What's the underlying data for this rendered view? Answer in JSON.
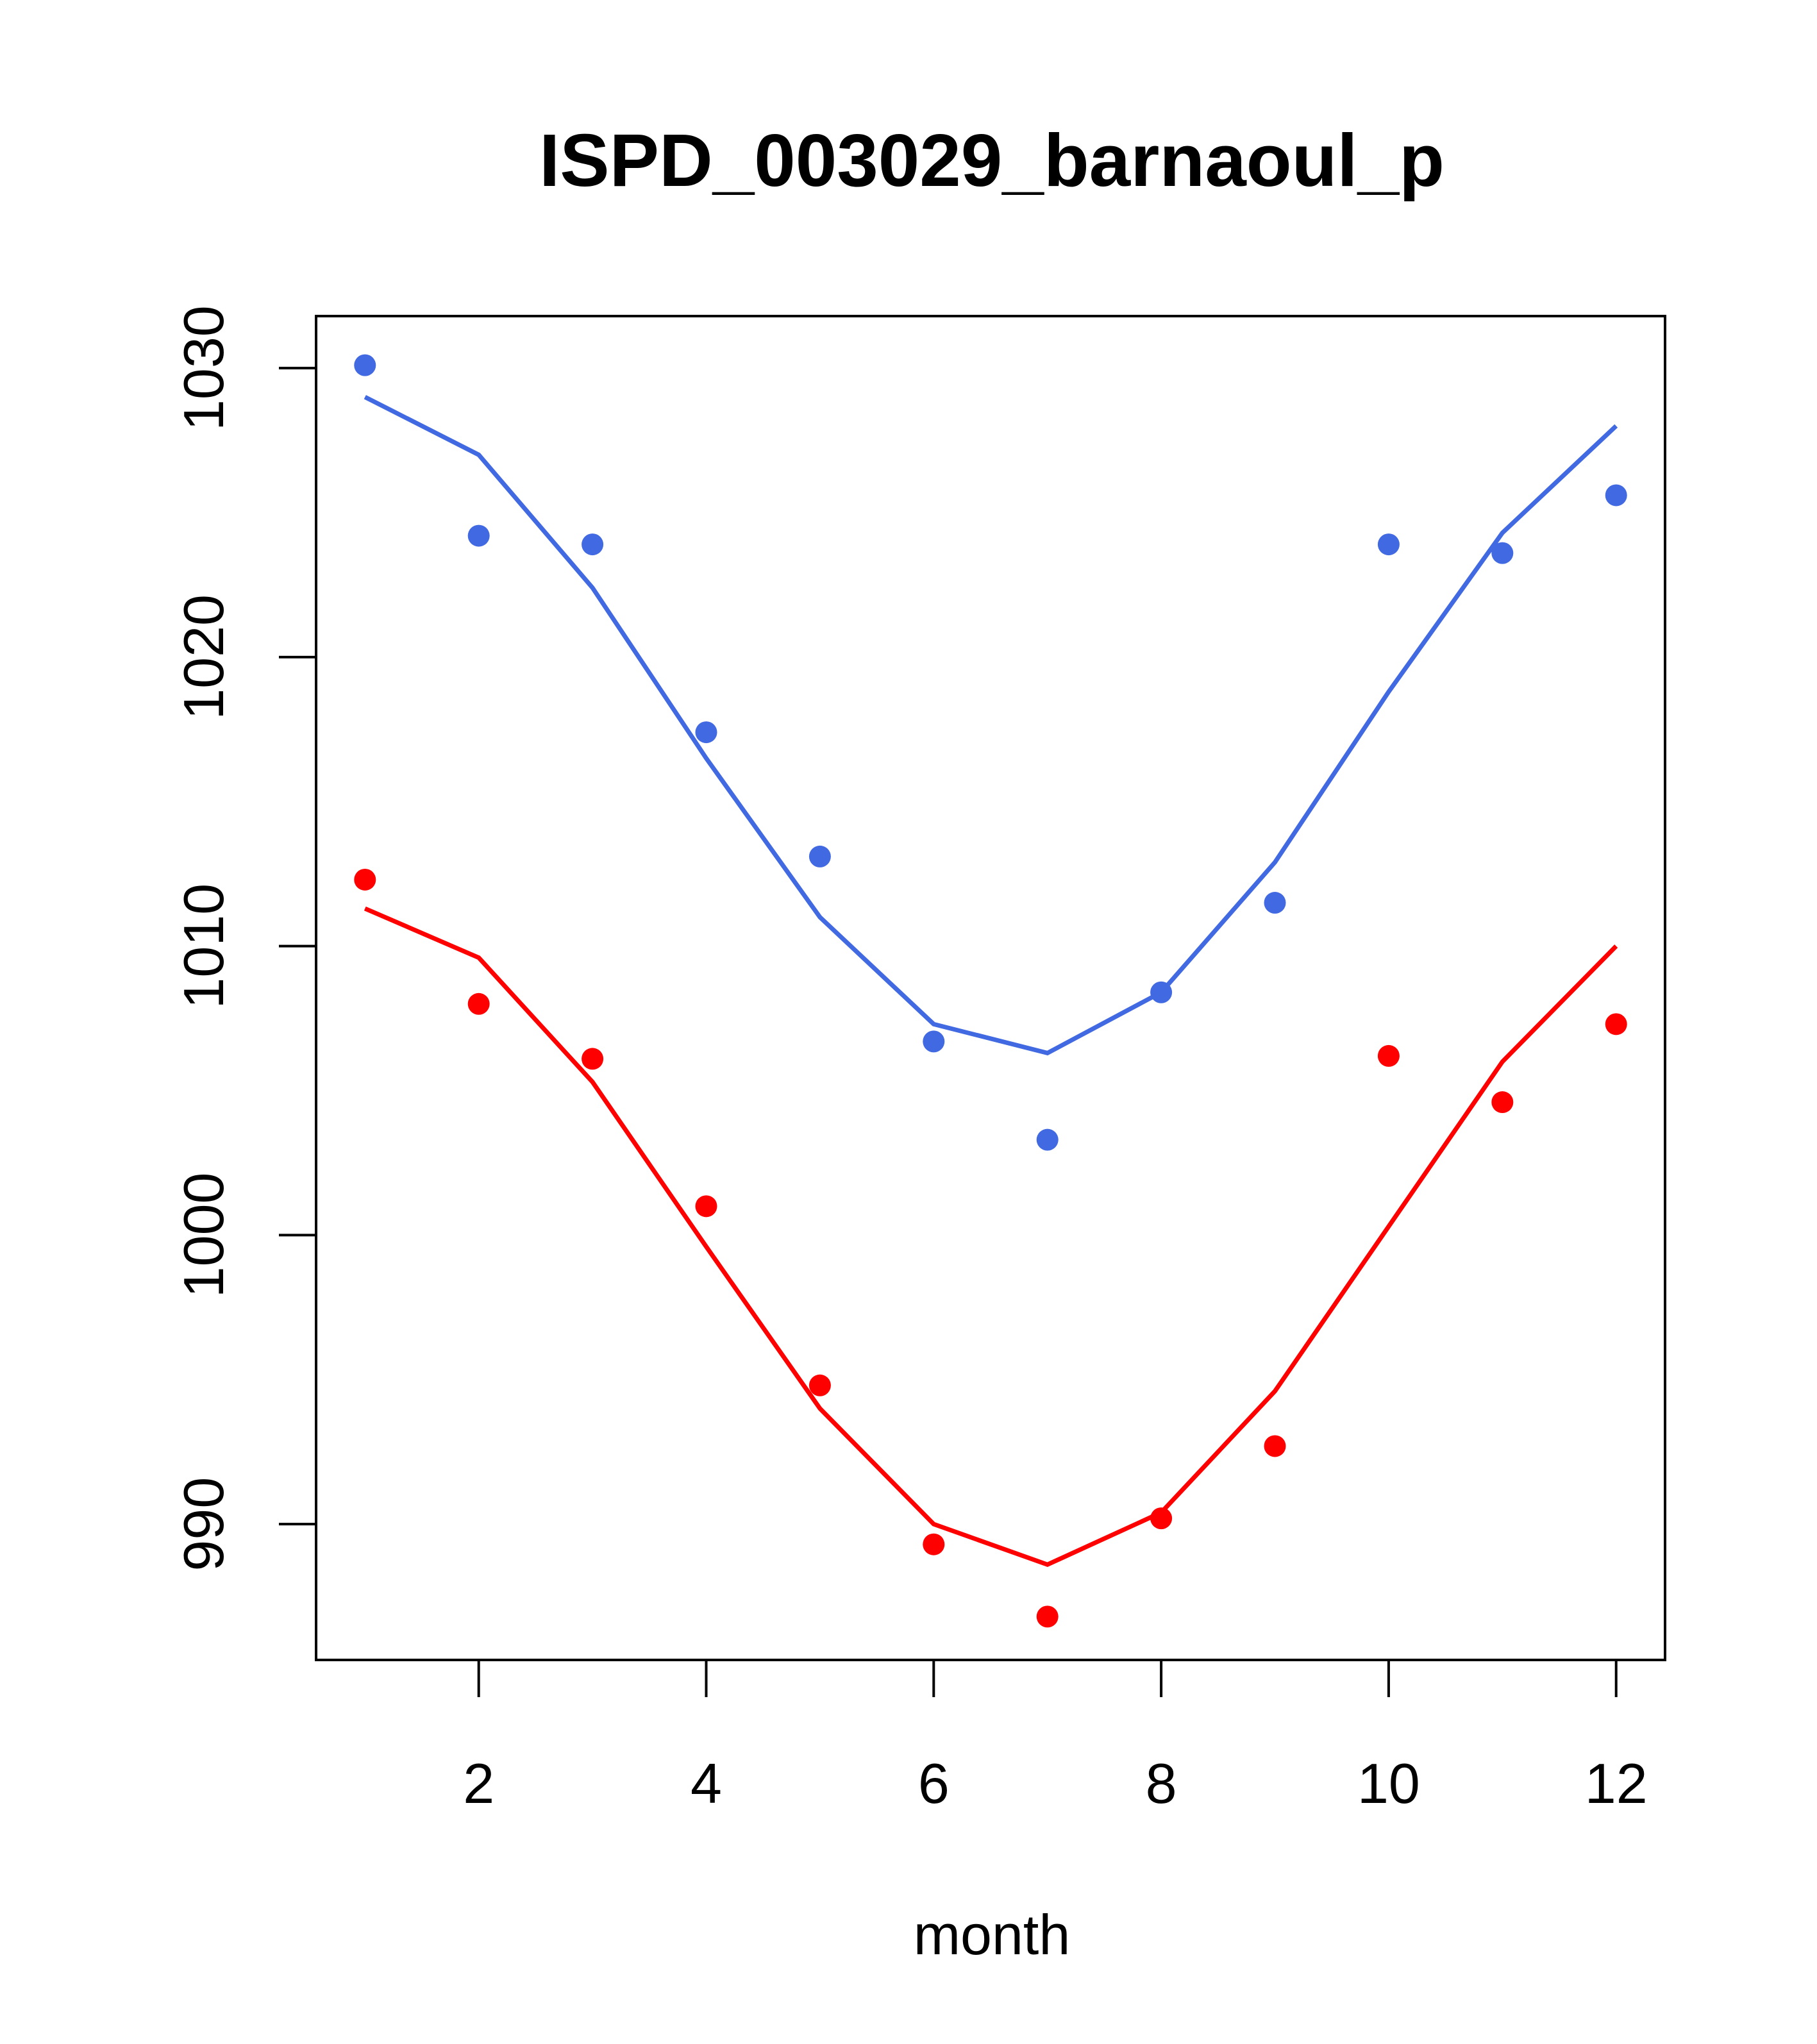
{
  "chart_data": {
    "type": "line",
    "title": "ISPD_003029_barnaoul_p",
    "xlabel": "month",
    "ylabel": "",
    "xlim": [
      0.57,
      12.43
    ],
    "ylim": [
      985.3,
      1031.8
    ],
    "x_ticks": [
      2,
      4,
      6,
      8,
      10,
      12
    ],
    "y_ticks": [
      990,
      1000,
      1010,
      1020,
      1030
    ],
    "x_tick_labels": [
      "2",
      "4",
      "6",
      "8",
      "10",
      "12"
    ],
    "y_tick_labels": [
      "990",
      "1000",
      "1010",
      "1020",
      "1030"
    ],
    "grid": false,
    "series": [
      {
        "name": "blue points",
        "kind": "points",
        "color": "#4169e1",
        "x": [
          1,
          2,
          3,
          4,
          5,
          6,
          7,
          8,
          9,
          10,
          11,
          12
        ],
        "values": [
          1030.1,
          1024.2,
          1023.9,
          1017.4,
          1013.1,
          1006.7,
          1003.3,
          1008.4,
          1011.5,
          1023.9,
          1023.6,
          1025.6
        ]
      },
      {
        "name": "blue line",
        "kind": "line",
        "color": "#4169e1",
        "x": [
          1,
          2,
          3,
          4,
          5,
          6,
          7,
          8,
          9,
          10,
          11,
          12
        ],
        "values": [
          1029.0,
          1027.0,
          1022.4,
          1016.5,
          1011.0,
          1007.3,
          1006.3,
          1008.4,
          1012.9,
          1018.8,
          1024.3,
          1028.0
        ]
      },
      {
        "name": "red points",
        "kind": "points",
        "color": "#ff0000",
        "x": [
          1,
          2,
          3,
          4,
          5,
          6,
          7,
          8,
          9,
          10,
          11,
          12
        ],
        "values": [
          1012.3,
          1008.0,
          1006.1,
          1001.0,
          994.8,
          989.3,
          986.8,
          990.2,
          992.7,
          1006.2,
          1004.6,
          1007.3
        ]
      },
      {
        "name": "red line",
        "kind": "line",
        "color": "#ff0000",
        "x": [
          1,
          2,
          3,
          4,
          5,
          6,
          7,
          8,
          9,
          10,
          11,
          12
        ],
        "values": [
          1011.3,
          1009.6,
          1005.3,
          999.6,
          994.0,
          990.0,
          988.6,
          990.4,
          994.6,
          1000.3,
          1006.0,
          1010.0
        ]
      }
    ]
  }
}
